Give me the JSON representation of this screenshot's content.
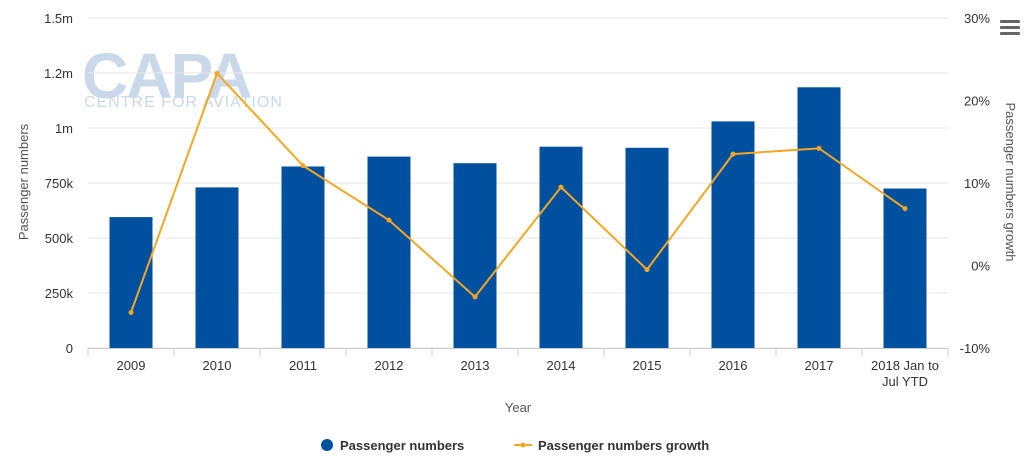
{
  "watermark": {
    "brand": "CAPA",
    "tagline": "CENTRE FOR AVIATION"
  },
  "menu": {
    "icon": "hamburger-menu-icon"
  },
  "colors": {
    "bars": "#0050a0",
    "line": "#f5a623",
    "grid": "#e6e6e6"
  },
  "chart_data": {
    "type": "bar",
    "xlabel": "Year",
    "ylabel": "Passenger numbers",
    "y2label": "Passenger numbers growth",
    "categories": [
      "2009",
      "2010",
      "2011",
      "2012",
      "2013",
      "2014",
      "2015",
      "2016",
      "2017",
      "2018 Jan to Jul YTD"
    ],
    "category_lines": [
      [
        "2009"
      ],
      [
        "2010"
      ],
      [
        "2011"
      ],
      [
        "2012"
      ],
      [
        "2013"
      ],
      [
        "2014"
      ],
      [
        "2015"
      ],
      [
        "2016"
      ],
      [
        "2017"
      ],
      [
        "2018 Jan to",
        "Jul YTD"
      ]
    ],
    "ylim": [
      0,
      1500000
    ],
    "y_ticks": [
      0,
      250000,
      500000,
      750000,
      1000000,
      1250000,
      1500000
    ],
    "y_tick_labels": [
      "0",
      "250k",
      "500k",
      "750k",
      "1m",
      "1.2m",
      "1.5m"
    ],
    "y2lim": [
      -10,
      30
    ],
    "y2_ticks": [
      -10,
      0,
      10,
      20,
      30
    ],
    "y2_tick_labels": [
      "-10%",
      "0%",
      "10%",
      "20%",
      "30%"
    ],
    "grid": true,
    "legend_position": "bottom-center",
    "series": [
      {
        "name": "Passenger numbers",
        "type": "bar",
        "axis": "left",
        "values": [
          595000,
          730000,
          825000,
          870000,
          840000,
          915000,
          910000,
          1030000,
          1185000,
          725000
        ]
      },
      {
        "name": "Passenger numbers growth",
        "type": "line",
        "axis": "right",
        "values": [
          -5.7,
          23.3,
          12.1,
          5.5,
          -3.8,
          9.5,
          -0.5,
          13.5,
          14.2,
          6.9
        ]
      }
    ]
  }
}
